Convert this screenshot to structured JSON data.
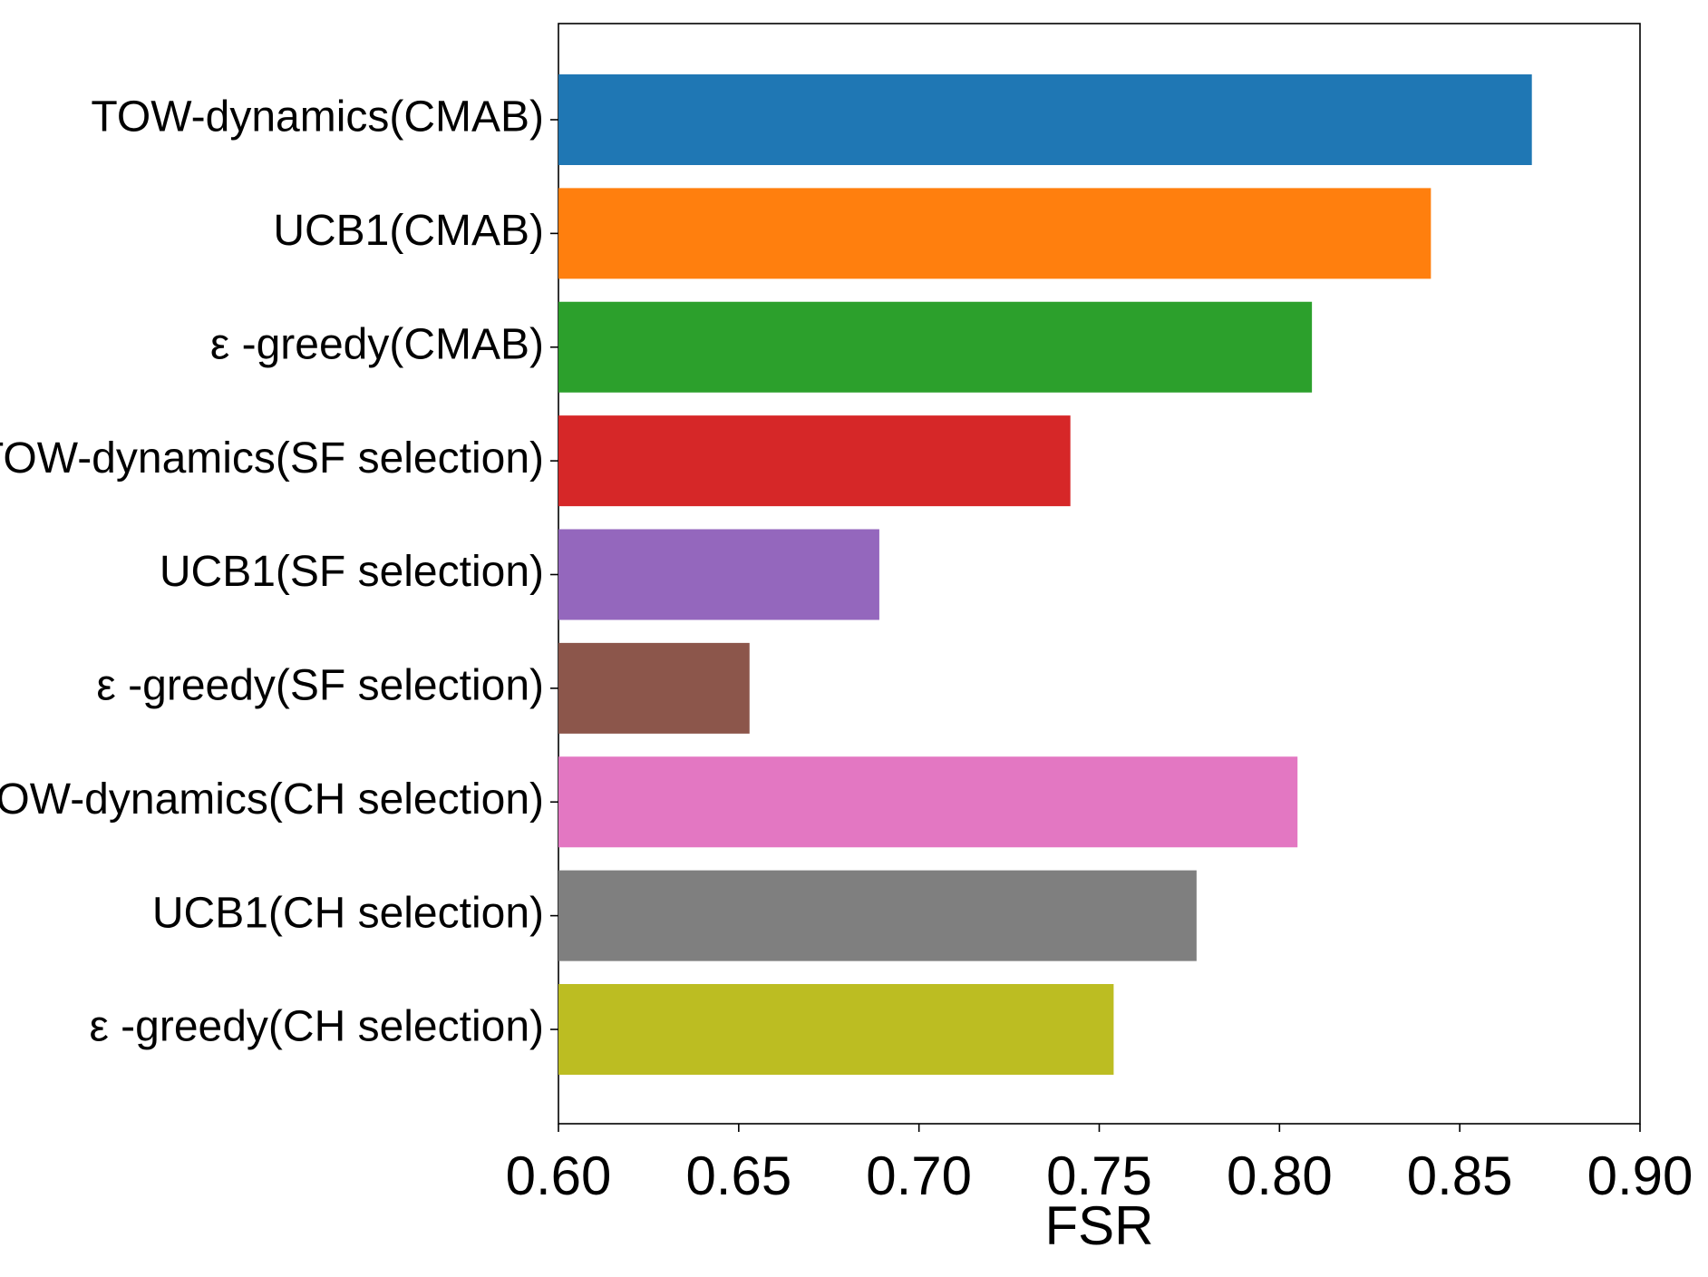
{
  "chart_data": {
    "type": "bar",
    "orientation": "horizontal",
    "title": "",
    "xlabel": "FSR",
    "ylabel": "",
    "xlim": [
      0.6,
      0.9
    ],
    "grid": false,
    "legend": "none",
    "categories": [
      "TOW-dynamics(CMAB)",
      "UCB1(CMAB)",
      "ε -greedy(CMAB)",
      "TOW-dynamics(SF selection)",
      "UCB1(SF selection)",
      "ε -greedy(SF selection)",
      "TOW-dynamics(CH selection)",
      "UCB1(CH selection)",
      "ε -greedy(CH selection)"
    ],
    "values": [
      0.87,
      0.842,
      0.809,
      0.742,
      0.689,
      0.653,
      0.805,
      0.777,
      0.754
    ],
    "colors": [
      "#1f77b4",
      "#ff7f0e",
      "#2ca02c",
      "#d62728",
      "#9467bd",
      "#8c564b",
      "#e377c2",
      "#7f7f7f",
      "#bcbd22"
    ],
    "xticks": [
      "0.60",
      "0.65",
      "0.70",
      "0.75",
      "0.80",
      "0.85",
      "0.90"
    ]
  }
}
